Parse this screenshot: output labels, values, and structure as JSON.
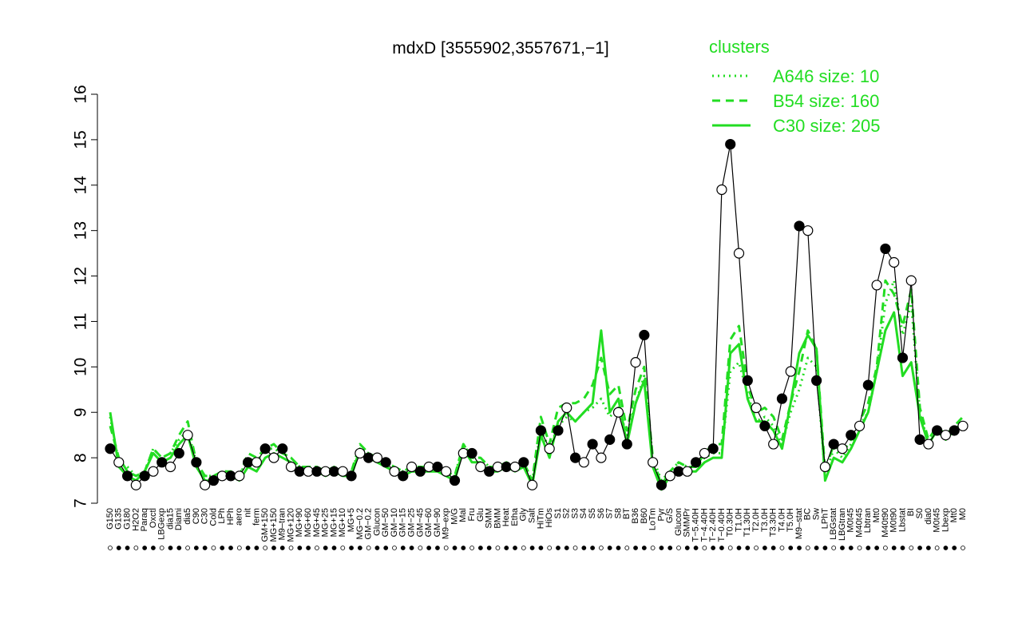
{
  "chart_data": {
    "type": "line",
    "title": "mdxD [3555902,3557671,−1]",
    "xlabel": "",
    "ylabel": "",
    "ylim": [
      7,
      16
    ],
    "yticks": [
      7,
      8,
      9,
      10,
      11,
      12,
      13,
      14,
      15,
      16
    ],
    "grid": false,
    "legend": {
      "title": "clusters",
      "placement": "top-right",
      "entries": [
        {
          "label": "A646 size: 10",
          "style": "dotted"
        },
        {
          "label": "B54 size: 160",
          "style": "dashed"
        },
        {
          "label": "C30 size: 205",
          "style": "solid"
        }
      ]
    },
    "tick_labels": [
      "G150",
      "G135",
      "G180",
      "H2O2",
      "Paraq",
      "Oxctl",
      "LBGexp",
      "dia15",
      "Diami",
      "dia5",
      "C90",
      "C30",
      "Cold",
      "LPh",
      "HPh",
      "aero",
      "nit",
      "ferm",
      "GM+150",
      "MG+150",
      "M9–tran",
      "MG+120",
      "MG+90",
      "MG+60",
      "MG+45",
      "MG+25",
      "MG+15",
      "MG+10",
      "MG+5",
      "MG−0.2",
      "GM−0.2",
      "Glucon",
      "GM−50",
      "GM−10",
      "GM−15",
      "GM−25",
      "GM−45",
      "GM−60",
      "GM−90",
      "M9–exp",
      "M/G",
      "Mal",
      "Fru",
      "Glu",
      "SMM",
      "BMM",
      "Heat",
      "Etha",
      "Gly",
      "Salt",
      "HiTm",
      "HiOs",
      "S1",
      "S2",
      "S3",
      "S4",
      "S5",
      "S6",
      "S7",
      "S8",
      "BT",
      "B36",
      "B60",
      "LoTm",
      "Pyr",
      "G/S",
      "Glucon",
      "SMMPr",
      "T−5.40H",
      "T−4.40H",
      "T−2.40H",
      "T−0.40H",
      "T0.30H",
      "T1.0H",
      "T1.30H",
      "T2.0H",
      "T3.0H",
      "T3.30H",
      "T4.0H",
      "T5.0H",
      "M9–stat",
      "BC",
      "Sw",
      "LPhT",
      "LBGstat",
      "LBGtran",
      "M0t45",
      "M40t45",
      "Lbtran",
      "Mt0",
      "M40t90",
      "M0t90",
      "Lbstat",
      "BI",
      "S0",
      "dia0",
      "M0t45",
      "Lbexp",
      "Mt0",
      "M0"
    ],
    "series": [
      {
        "name": "A646 size: 10",
        "style": "dotted",
        "values": [
          8.9,
          7.9,
          7.8,
          7.6,
          7.7,
          8.2,
          8.0,
          8.1,
          8.4,
          8.6,
          7.9,
          7.6,
          7.6,
          7.7,
          7.7,
          7.6,
          8.0,
          7.9,
          8.2,
          8.2,
          8.1,
          8.0,
          7.8,
          7.8,
          7.8,
          7.7,
          7.8,
          7.7,
          7.7,
          8.2,
          8.1,
          8.0,
          7.9,
          7.8,
          7.7,
          7.8,
          7.8,
          7.8,
          7.8,
          7.7,
          7.6,
          8.3,
          8.0,
          8.0,
          7.8,
          7.8,
          7.9,
          7.8,
          7.9,
          7.5,
          8.6,
          8.2,
          8.7,
          8.9,
          8.8,
          9.0,
          9.1,
          9.3,
          8.9,
          9.1,
          8.5,
          9.2,
          9.8,
          8.0,
          7.5,
          7.7,
          7.9,
          7.8,
          7.8,
          8.0,
          8.1,
          8.1,
          9.9,
          10.1,
          9.4,
          8.8,
          8.9,
          8.7,
          8.3,
          9.0,
          9.5,
          10.2,
          10.0,
          7.6,
          8.2,
          8.0,
          8.3,
          8.7,
          9.0,
          9.9,
          11.4,
          11.9,
          10.7,
          11.4,
          9.0,
          8.3,
          8.6,
          8.4,
          8.6,
          8.8
        ]
      },
      {
        "name": "B54 size: 160",
        "style": "dashed",
        "values": [
          8.7,
          8.0,
          7.7,
          7.6,
          7.7,
          8.2,
          8.0,
          8.1,
          8.5,
          8.8,
          7.9,
          7.6,
          7.6,
          7.7,
          7.7,
          7.6,
          8.1,
          8.0,
          8.2,
          8.3,
          8.1,
          8.0,
          7.8,
          7.8,
          7.8,
          7.7,
          7.8,
          7.7,
          7.7,
          8.3,
          8.1,
          8.0,
          7.9,
          7.8,
          7.7,
          7.8,
          7.8,
          7.8,
          7.8,
          7.7,
          7.6,
          8.3,
          8.0,
          8.0,
          7.8,
          7.8,
          7.9,
          7.8,
          7.9,
          7.5,
          8.9,
          8.3,
          9.1,
          9.2,
          9.2,
          9.3,
          9.6,
          10.2,
          9.4,
          9.6,
          8.6,
          9.5,
          10.0,
          8.0,
          7.4,
          7.7,
          7.9,
          7.8,
          7.8,
          8.1,
          8.3,
          8.3,
          10.6,
          10.9,
          9.6,
          9.0,
          9.1,
          8.9,
          8.4,
          9.2,
          9.9,
          10.8,
          10.4,
          7.7,
          8.3,
          8.1,
          8.4,
          8.8,
          9.2,
          10.0,
          11.9,
          11.6,
          10.9,
          11.7,
          9.1,
          8.4,
          8.7,
          8.5,
          8.7,
          8.9
        ]
      },
      {
        "name": "C30 size: 205",
        "style": "solid",
        "values": [
          9.0,
          7.8,
          7.6,
          7.5,
          7.7,
          8.1,
          7.9,
          8.0,
          8.3,
          8.5,
          7.8,
          7.5,
          7.5,
          7.6,
          7.6,
          7.5,
          7.8,
          7.7,
          8.0,
          8.1,
          8.0,
          7.9,
          7.7,
          7.7,
          7.7,
          7.6,
          7.7,
          7.6,
          7.6,
          8.2,
          8.0,
          7.9,
          7.8,
          7.7,
          7.6,
          7.7,
          7.7,
          7.7,
          7.7,
          7.6,
          7.5,
          8.2,
          7.9,
          7.9,
          7.7,
          7.7,
          7.8,
          7.7,
          7.8,
          7.4,
          8.5,
          8.0,
          8.8,
          9.0,
          8.8,
          9.0,
          9.2,
          10.8,
          9.0,
          9.3,
          8.3,
          9.2,
          9.7,
          7.8,
          7.3,
          7.6,
          7.7,
          7.7,
          7.7,
          7.9,
          8.0,
          8.0,
          10.3,
          10.5,
          9.3,
          8.8,
          8.8,
          8.6,
          8.2,
          9.2,
          10.3,
          10.7,
          10.4,
          7.5,
          8.0,
          7.9,
          8.2,
          8.6,
          9.0,
          9.9,
          10.8,
          11.2,
          9.8,
          10.1,
          8.9,
          8.3,
          8.6,
          8.4,
          8.6,
          8.8
        ]
      },
      {
        "name": "",
        "style": "points",
        "values": [
          8.2,
          7.9,
          7.6,
          7.4,
          7.6,
          7.7,
          7.9,
          7.8,
          8.1,
          8.5,
          7.9,
          7.4,
          7.5,
          7.6,
          7.6,
          7.6,
          7.9,
          7.9,
          8.2,
          8.0,
          8.2,
          7.8,
          7.7,
          7.7,
          7.7,
          7.7,
          7.7,
          7.7,
          7.6,
          8.1,
          8.0,
          8.0,
          7.9,
          7.7,
          7.6,
          7.8,
          7.7,
          7.8,
          7.8,
          7.7,
          7.5,
          8.1,
          8.1,
          7.8,
          7.7,
          7.8,
          7.8,
          7.8,
          7.9,
          7.4,
          8.6,
          8.2,
          8.6,
          9.1,
          8.0,
          7.9,
          8.3,
          8.0,
          8.4,
          9.0,
          8.3,
          10.1,
          10.7,
          7.9,
          7.4,
          7.6,
          7.7,
          7.7,
          7.9,
          8.1,
          8.2,
          13.9,
          14.9,
          12.5,
          9.7,
          9.1,
          8.7,
          8.3,
          9.3,
          9.9,
          13.1,
          13.0,
          9.7,
          7.8,
          8.3,
          8.2,
          8.5,
          8.7,
          9.6,
          11.8,
          12.6,
          12.3,
          10.2,
          11.9,
          8.4,
          8.3,
          8.6,
          8.5,
          8.6,
          8.7
        ]
      }
    ]
  },
  "colors": {
    "cluster_line": "#22dd22",
    "profile_line": "#000000",
    "point_fill_open": "#ffffff",
    "point_fill_closed": "#000000"
  }
}
